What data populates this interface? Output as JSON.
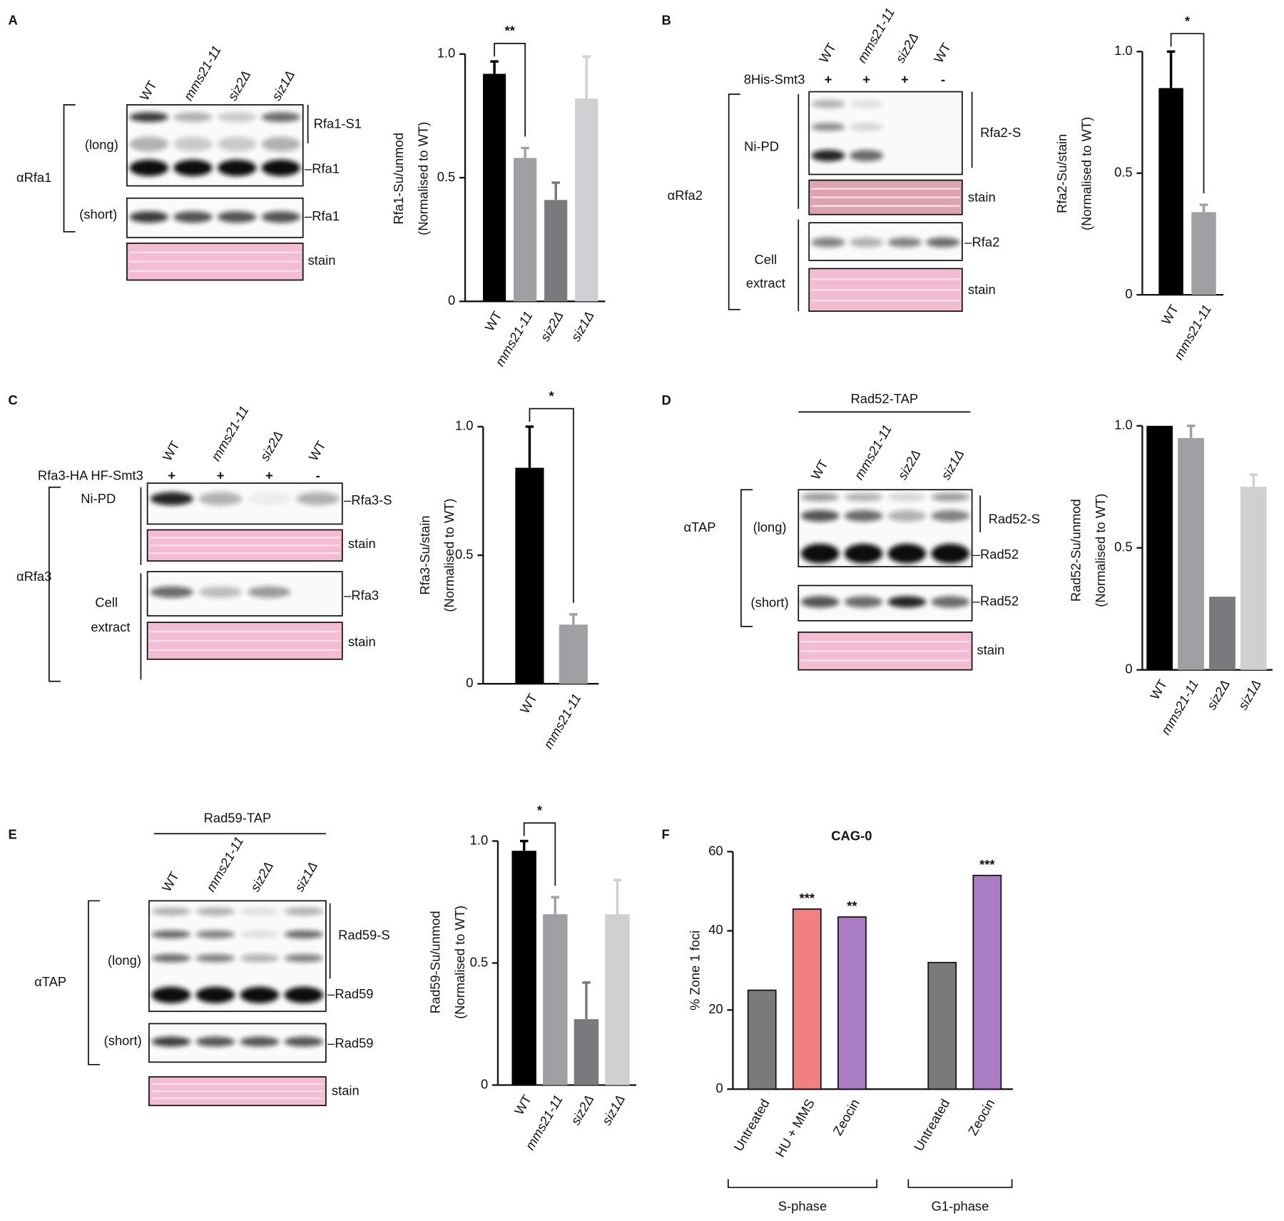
{
  "panel_labels": [
    "A",
    "B",
    "C",
    "D",
    "E",
    "F"
  ],
  "blots": {
    "A": {
      "lanes": [
        "WT",
        "mms21-11",
        "siz2Δ",
        "siz1Δ"
      ],
      "antibody": "αRfa1",
      "exposures": [
        "(long)",
        "(short)"
      ],
      "labels": [
        "Rfa1-S1",
        "–Rfa1",
        "–Rfa1",
        "stain"
      ]
    },
    "B": {
      "lanes": [
        "WT",
        "mms21-11",
        "siz2Δ",
        "WT"
      ],
      "construct": "8His-Smt3",
      "signs": [
        "+",
        "+",
        "+",
        "-"
      ],
      "antibody": "αRfa2",
      "pulldown": "Ni-PD",
      "extract": [
        "Cell",
        "extract"
      ],
      "labels": [
        "Rfa2-S",
        "stain",
        "–Rfa2",
        "stain"
      ]
    },
    "C": {
      "lanes": [
        "WT",
        "mms21-11",
        "siz2Δ",
        "WT"
      ],
      "construct": "Rfa3-HA HF-Smt3",
      "signs": [
        "+",
        "+",
        "+",
        "-"
      ],
      "antibody": "αRfa3",
      "pulldown": "Ni-PD",
      "extract": [
        "Cell",
        "extract"
      ],
      "labels": [
        "–Rfa3-S",
        "stain",
        "–Rfa3",
        "stain"
      ]
    },
    "D": {
      "header": "Rad52-TAP",
      "lanes": [
        "WT",
        "mms21-11",
        "siz2Δ",
        "siz1Δ"
      ],
      "antibody": "αTAP",
      "exposures": [
        "(long)",
        "(short)"
      ],
      "labels": [
        "Rad52-S",
        "–Rad52",
        "–Rad52",
        "stain"
      ]
    },
    "E": {
      "header": "Rad59-TAP",
      "lanes": [
        "WT",
        "mms21-11",
        "siz2Δ",
        "siz1Δ"
      ],
      "antibody": "αTAP",
      "exposures": [
        "(long)",
        "(short)"
      ],
      "labels": [
        "Rad59-S",
        "–Rad59",
        "–Rad59",
        "stain"
      ]
    }
  },
  "chart_data": [
    {
      "type": "bar",
      "ylabel": [
        "Rfa1-Su/unmod",
        "(Normalised to WT)"
      ],
      "categories": [
        "WT",
        "mms21-11",
        "siz2Δ",
        "siz1Δ"
      ],
      "values": [
        0.92,
        0.58,
        0.41,
        0.82
      ],
      "errors": [
        0.05,
        0.04,
        0.07,
        0.17
      ],
      "colors": [
        "#000000",
        "#a0a0a4",
        "#7a7a7e",
        "#d0d0d2"
      ],
      "ylim": [
        0,
        1
      ],
      "yticks": [
        0,
        0.5,
        {
          "value": 1,
          "label": "1.0"
        }
      ],
      "significance": "**"
    },
    {
      "type": "bar",
      "ylabel": [
        "Rfa2-Su/stain",
        "(Normalised to WT)"
      ],
      "categories": [
        "WT",
        "mms21-11"
      ],
      "values": [
        0.85,
        0.34
      ],
      "errors": [
        0.15,
        0.03
      ],
      "colors": [
        "#000000",
        "#a0a0a4"
      ],
      "ylim": [
        0,
        1
      ],
      "yticks": [
        0,
        0.5,
        {
          "value": 1,
          "label": "1.0"
        }
      ],
      "significance": "*"
    },
    {
      "type": "bar",
      "ylabel": [
        "Rfa3-Su/stain",
        "(Normalised to WT)"
      ],
      "categories": [
        "WT",
        "mms21-11"
      ],
      "values": [
        0.84,
        0.23
      ],
      "errors": [
        0.16,
        0.04
      ],
      "colors": [
        "#000000",
        "#a0a0a4"
      ],
      "ylim": [
        0,
        1
      ],
      "yticks": [
        0,
        0.5,
        {
          "value": 1,
          "label": "1.0"
        }
      ],
      "significance": "*"
    },
    {
      "type": "bar",
      "ylabel": [
        "Rad52-Su/unmod",
        "(Normalised to WT)"
      ],
      "categories": [
        "WT",
        "mms21-11",
        "siz2Δ",
        "siz1Δ"
      ],
      "values": [
        1.0,
        0.95,
        0.3,
        0.75
      ],
      "errors": [
        null,
        0.05,
        null,
        0.05
      ],
      "colors": [
        "#000000",
        "#a0a0a4",
        "#7a7a7e",
        "#d0d0d2"
      ],
      "ylim": [
        0,
        1
      ],
      "yticks": [
        0,
        0.5,
        {
          "value": 1,
          "label": "1.0"
        }
      ]
    },
    {
      "type": "bar",
      "ylabel": [
        "Rad59-Su/unmod",
        "(Normalised to WT)"
      ],
      "categories": [
        "WT",
        "mms21-11",
        "siz2Δ",
        "siz1Δ"
      ],
      "values": [
        0.96,
        0.7,
        0.27,
        0.7
      ],
      "errors": [
        0.04,
        0.07,
        0.15,
        0.14
      ],
      "colors": [
        "#000000",
        "#a0a0a4",
        "#7a7a7e",
        "#d0d0d2"
      ],
      "ylim": [
        0,
        1
      ],
      "yticks": [
        0,
        0.5,
        {
          "value": 1,
          "label": "1.0"
        }
      ],
      "significance": "*"
    },
    {
      "type": "bar",
      "title": "CAG-0",
      "ylabel": [
        "% Zone 1 foci"
      ],
      "categories": [
        "Untreated",
        "HU + MMS",
        "Zeocin",
        null,
        "Untreated",
        "Zeocin"
      ],
      "values": [
        25,
        45.5,
        43.5,
        null,
        32,
        54
      ],
      "colors": [
        "#7a7a7a",
        "#f28080",
        "#a97cc4",
        null,
        "#7a7a7a",
        "#a97cc4"
      ],
      "annotations": [
        null,
        "***",
        "**",
        null,
        null,
        "***"
      ],
      "groups": [
        "S-phase",
        "G1-phase"
      ],
      "ylim": [
        0,
        60
      ],
      "yticks": [
        0,
        20,
        40,
        60
      ]
    }
  ]
}
